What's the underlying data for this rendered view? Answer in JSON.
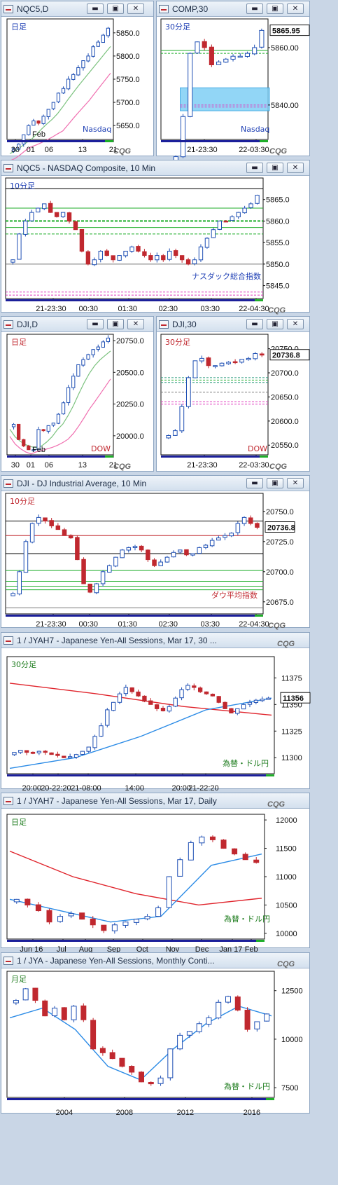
{
  "windows": [
    {
      "id": "w1",
      "title": "NQC5,D",
      "period_label": "日足",
      "corner_label": "Nasdaq",
      "y_ticks": [
        "5850.0",
        "5800.0",
        "5750.0",
        "5700.0",
        "5650.0"
      ],
      "x_ticks": [
        "30",
        "01",
        "06",
        "13",
        "21"
      ],
      "x_minor": "Feb",
      "logo": "CQG"
    },
    {
      "id": "w2",
      "title": "COMP,30",
      "period_label": "30分足",
      "corner_label": "Nasdaq",
      "y_ticks": [
        "5860.00",
        "5840.00"
      ],
      "last_price": "5865.95",
      "x_ticks": [
        "21-23:30",
        "22-03:30"
      ],
      "logo": "CQG"
    },
    {
      "id": "w3",
      "title": "NQC5 - NASDAQ Composite, 10 Min",
      "period_label": "10分足",
      "corner_label": "ナスダック総合指数",
      "y_ticks": [
        "5865.0",
        "5860.0",
        "5855.0",
        "5850.0",
        "5845.0"
      ],
      "x_ticks": [
        "21-23:30",
        "00:30",
        "01:30",
        "02:30",
        "03:30",
        "22-04:30"
      ],
      "logo": "CQG"
    },
    {
      "id": "w4",
      "title": "DJI,D",
      "period_label": "日足",
      "corner_label": "DOW",
      "y_ticks": [
        "20750.0",
        "20500.0",
        "20250.0",
        "20000.0"
      ],
      "x_ticks": [
        "30",
        "01",
        "06",
        "13",
        "21"
      ],
      "x_minor": "Feb",
      "logo": "CQG"
    },
    {
      "id": "w5",
      "title": "DJI,30",
      "period_label": "30分足",
      "corner_label": "DOW",
      "y_ticks": [
        "20750.0",
        "20700.0",
        "20650.0",
        "20600.0",
        "20550.0"
      ],
      "last_price": "20736.8",
      "x_ticks": [
        "21-23:30",
        "22-03:30"
      ],
      "logo": "CQG"
    },
    {
      "id": "w6",
      "title": "DJI - DJ Industrial Average, 10 Min",
      "period_label": "10分足",
      "corner_label": "ダウ平均指数",
      "y_ticks": [
        "20750.0",
        "20725.0",
        "20700.0",
        "20675.0"
      ],
      "last_price": "20736.8",
      "x_ticks": [
        "21-23:30",
        "00:30",
        "01:30",
        "02:30",
        "03:30",
        "22-04:30"
      ],
      "logo": "CQG"
    },
    {
      "id": "w7",
      "title": "1 / JYAH7 - Japanese Yen-All Sessions, Mar 17, 30 ...",
      "period_label": "30分足",
      "corner_label": "為替・ドル円",
      "y_ticks": [
        "11375",
        "11350",
        "11325",
        "11300"
      ],
      "last_price": "11356",
      "x_ticks": [
        "20:00",
        "20-22:20",
        "21-08:00",
        "14:00",
        "20:00",
        "21-22:20"
      ],
      "logo": "CQG"
    },
    {
      "id": "w8",
      "title": "1 / JYAH7 - Japanese Yen-All Sessions, Mar 17, Daily",
      "period_label": "日足",
      "corner_label": "為替・ドル円",
      "y_ticks": [
        "12000",
        "11500",
        "11000",
        "10500",
        "10000"
      ],
      "x_ticks": [
        "Jun 16",
        "Jul",
        "Aug",
        "Sep",
        "Oct",
        "Nov",
        "Dec",
        "Jan 17",
        "Feb"
      ],
      "logo": "CQG"
    },
    {
      "id": "w9",
      "title": "1 / JYA - Japanese Yen-All Sessions, Monthly Conti...",
      "period_label": "月足",
      "corner_label": "為替・ドル円",
      "y_ticks": [
        "12500",
        "10000",
        "7500"
      ],
      "x_ticks": [
        "2004",
        "2008",
        "2012",
        "2016"
      ],
      "logo": "CQG"
    }
  ],
  "window_buttons": {
    "minimize": "▬",
    "restore": "▣",
    "close": "✕"
  },
  "colors": {
    "up": "#1e4fb4",
    "down": "#c0282f",
    "green": "#1fae2a",
    "pink": "#e03cbf",
    "zone": "#7fd0f5"
  },
  "chart_data": [
    {
      "type": "candlestick",
      "title": "NQC5,D",
      "period": "daily",
      "ylim": [
        5620,
        5880
      ],
      "x_labels": [
        "30",
        "01",
        "06",
        "13",
        "21"
      ],
      "close": [
        5600,
        5610,
        5630,
        5650,
        5660,
        5655,
        5670,
        5685,
        5700,
        5720,
        5730,
        5750,
        5760,
        5775,
        5790,
        5800,
        5820,
        5830,
        5845,
        5860
      ],
      "lines": [
        "green moving average",
        "pink moving average"
      ]
    },
    {
      "type": "candlestick",
      "title": "COMP,30",
      "period": "30min",
      "ylim": [
        5828,
        5870
      ],
      "x_labels": [
        "21-23:30",
        "22-03:30"
      ],
      "last": 5865.95,
      "close": [
        5818,
        5822,
        5836,
        5858,
        5862,
        5860,
        5854,
        5855,
        5856,
        5857,
        5857,
        5858,
        5860,
        5866
      ],
      "zone": [
        5838,
        5846
      ]
    },
    {
      "type": "candlestick",
      "title": "NQC5 - NASDAQ Composite, 10 Min",
      "period": "10min",
      "ylim": [
        5842,
        5870
      ],
      "x_labels": [
        "21-23:30",
        "00:30",
        "01:30",
        "02:30",
        "03:30",
        "22-04:30"
      ],
      "levels": [
        5867.5,
        5863,
        5860,
        5858.5,
        5857,
        5850
      ],
      "close": [
        5851,
        5857,
        5860,
        5862,
        5863,
        5864,
        5862,
        5861,
        5862,
        5860,
        5858,
        5853,
        5850,
        5851,
        5853,
        5852,
        5851,
        5852,
        5853,
        5854,
        5853,
        5852,
        5851,
        5852,
        5851,
        5853,
        5852,
        5851,
        5850,
        5851,
        5854,
        5856,
        5858,
        5860,
        5860,
        5861,
        5862,
        5863,
        5864,
        5866
      ]
    },
    {
      "type": "candlestick",
      "title": "DJI,D",
      "period": "daily",
      "ylim": [
        19850,
        20800
      ],
      "x_labels": [
        "30",
        "01",
        "06",
        "13",
        "21"
      ],
      "close": [
        20090,
        19970,
        19920,
        19890,
        19890,
        20050,
        20040,
        20080,
        20100,
        20170,
        20260,
        20380,
        20470,
        20560,
        20600,
        20640,
        20680,
        20700,
        20740,
        20770
      ]
    },
    {
      "type": "candlestick",
      "title": "DJI,30",
      "period": "30min",
      "ylim": [
        20530,
        20780
      ],
      "x_labels": [
        "21-23:30",
        "22-03:30"
      ],
      "last": 20736.8,
      "close": [
        20570,
        20580,
        20630,
        20690,
        20725,
        20730,
        20715,
        20715,
        20720,
        20722,
        20722,
        20728,
        20730,
        20740,
        20736.8
      ]
    },
    {
      "type": "candlestick",
      "title": "DJI - DJ Industrial Average, 10 Min",
      "period": "10min",
      "ylim": [
        20665,
        20765
      ],
      "x_labels": [
        "21-23:30",
        "00:30",
        "01:30",
        "02:30",
        "03:30",
        "22-04:30"
      ],
      "last": 20736.8,
      "levels": [
        20742,
        20730,
        20715,
        20701,
        20692,
        20688,
        20685,
        20670
      ],
      "close": [
        20682,
        20700,
        20725,
        20740,
        20745,
        20742,
        20738,
        20735,
        20730,
        20728,
        20710,
        20690,
        20683,
        20690,
        20700,
        20705,
        20712,
        20718,
        20720,
        20721,
        20718,
        20710,
        20705,
        20708,
        20712,
        20716,
        20718,
        20714,
        20715,
        20720,
        20722,
        20726,
        20728,
        20730,
        20732,
        20740,
        20745,
        20740,
        20736.8
      ]
    },
    {
      "type": "candlestick",
      "title": "1 / JYAH7 - Japanese Yen-All Sessions, Mar 17, 30 ...",
      "period": "30min",
      "ylim": [
        11285,
        11395
      ],
      "x_labels": [
        "20:00",
        "20-22:20",
        "21-08:00",
        "14:00",
        "20:00",
        "21-22:20"
      ],
      "last": 11356,
      "close": [
        11305,
        11307,
        11305,
        11304,
        11306,
        11305,
        11303,
        11302,
        11300,
        11301,
        11303,
        11306,
        11310,
        11320,
        11330,
        11345,
        11352,
        11360,
        11366,
        11362,
        11358,
        11353,
        11350,
        11346,
        11344,
        11348,
        11356,
        11364,
        11368,
        11366,
        11362,
        11360,
        11358,
        11352,
        11346,
        11342,
        11346,
        11350,
        11352,
        11354,
        11355,
        11356
      ],
      "red_average": [
        11370,
        11360,
        11348,
        11340
      ],
      "blue_average": [
        11290,
        11300,
        11320,
        11345,
        11356
      ]
    },
    {
      "type": "candlestick",
      "title": "1 / JYAH7 - Japanese Yen-All Sessions, Mar 17, Daily",
      "period": "daily",
      "ylim": [
        9900,
        12100
      ],
      "x_labels": [
        "Jun 16",
        "Jul",
        "Aug",
        "Sep",
        "Oct",
        "Nov",
        "Dec",
        "Jan 17",
        "Feb"
      ],
      "close": [
        10600,
        10500,
        10400,
        10200,
        10300,
        10350,
        10250,
        10150,
        10050,
        10150,
        10200,
        10250,
        10300,
        10450,
        11000,
        11300,
        11600,
        11700,
        11650,
        11500,
        11400,
        11300,
        11250
      ],
      "red_average": [
        11450,
        11000,
        10700,
        10500,
        10620
      ],
      "blue_average": [
        10600,
        10400,
        10200,
        10300,
        11200,
        11400
      ]
    },
    {
      "type": "candlestick",
      "title": "1 / JYA - Japanese Yen-All Sessions, Monthly Conti...",
      "period": "monthly",
      "ylim": [
        7000,
        13500
      ],
      "x_labels": [
        "2004",
        "2008",
        "2012",
        "2016"
      ],
      "close": [
        12000,
        12600,
        12000,
        11200,
        11600,
        11000,
        11700,
        11000,
        9500,
        9300,
        9000,
        8600,
        8300,
        7800,
        7700,
        8000,
        9500,
        10200,
        10400,
        10800,
        11100,
        11900,
        12200,
        11500,
        10500,
        10900,
        11300
      ],
      "blue_average": [
        11100,
        11600,
        10500,
        8600,
        7900,
        9500,
        10800,
        11700,
        11200
      ]
    }
  ]
}
